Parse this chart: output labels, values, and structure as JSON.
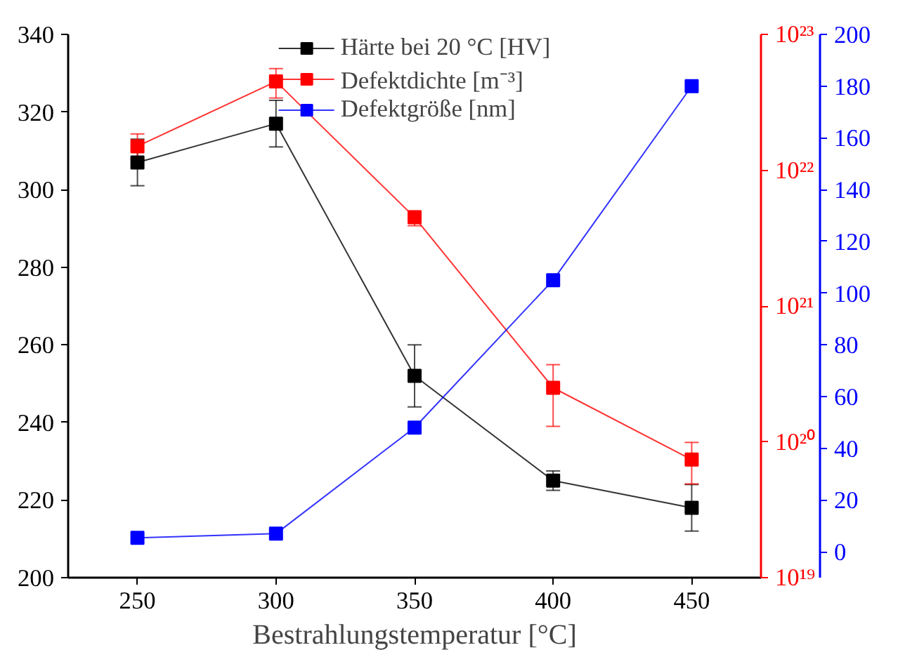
{
  "chart_data": {
    "type": "line",
    "xlabel": "Bestrahlungstemperatur [°C]",
    "x": [
      250,
      300,
      350,
      400,
      450
    ],
    "xlim": [
      225,
      475
    ],
    "xticks": [
      250,
      300,
      350,
      400,
      450
    ],
    "ylim": [
      200,
      340
    ],
    "yticks": [
      200,
      220,
      240,
      260,
      280,
      300,
      320,
      340
    ],
    "y2lim": [
      1e+19,
      1e+23
    ],
    "y2ticks": [
      {
        "value": 1e+19,
        "label": "10¹⁹"
      },
      {
        "value": 1e+20,
        "label": "10²⁰"
      },
      {
        "value": 1e+21,
        "label": "10²¹"
      },
      {
        "value": 1e+22,
        "label": "10²²"
      },
      {
        "value": 1e+23,
        "label": "10²³"
      }
    ],
    "y3lim": [
      -10,
      200
    ],
    "y3ticks": [
      0,
      20,
      40,
      60,
      80,
      100,
      120,
      140,
      160,
      180,
      200
    ],
    "log": "y2",
    "marker": "square",
    "line_style": "solid",
    "grid": false,
    "legend": "top",
    "series": [
      {
        "name": "Härte bei 20 °C [HV]",
        "color": "#000000",
        "axis": "y",
        "values": [
          307,
          317,
          252,
          225,
          218
        ],
        "errors": [
          6,
          6,
          8,
          2.5,
          6
        ]
      },
      {
        "name": "Defektdichte [m⁻³]",
        "color": "#ff0000",
        "axis": "y2",
        "values": [
          1.5e+22,
          4.5e+22,
          4.5e+21,
          2.5e+20,
          7.4e+19
        ],
        "errors": [
          [
            1.2e+22,
            1.85e+22
          ],
          [
            3.4e+22,
            5.6e+22
          ],
          [
            3.9e+21,
            5e+21
          ],
          [
            1.3e+20,
            3.7e+20
          ],
          [
            4.9e+19,
            9.9e+19
          ]
        ]
      },
      {
        "name": "Defektgröße [nm]",
        "color": "#0000ff",
        "axis": "y3",
        "values": [
          5.4,
          7,
          48,
          105,
          180
        ]
      }
    ]
  }
}
